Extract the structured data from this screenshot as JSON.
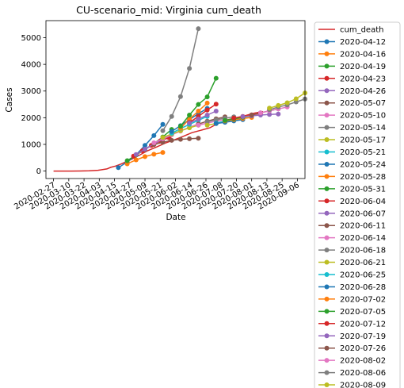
{
  "chart_data": {
    "type": "line",
    "title": "CU-scenario_mid: Virginia cum_death",
    "xlabel": "Date",
    "ylabel": "Cases",
    "xlim": [
      "2020-02-21",
      "2020-09-12"
    ],
    "ylim": [
      -280,
      5640
    ],
    "yticks": [
      0,
      1000,
      2000,
      3000,
      4000,
      5000
    ],
    "xticks": [
      "2020-02-27",
      "2020-03-10",
      "2020-03-22",
      "2020-04-03",
      "2020-04-15",
      "2020-04-27",
      "2020-05-09",
      "2020-05-21",
      "2020-06-02",
      "2020-06-14",
      "2020-06-26",
      "2020-07-08",
      "2020-07-20",
      "2020-08-01",
      "2020-08-13",
      "2020-08-25",
      "2020-09-06"
    ],
    "grid": false,
    "legend_position": "outside-right",
    "series": [
      {
        "name": "cum_death",
        "color": "#d62728",
        "marker": false,
        "points": [
          [
            "2020-02-27",
            0
          ],
          [
            "2020-03-05",
            0
          ],
          [
            "2020-03-12",
            0
          ],
          [
            "2020-03-19",
            2
          ],
          [
            "2020-03-26",
            8
          ],
          [
            "2020-04-02",
            30
          ],
          [
            "2020-04-09",
            80
          ],
          [
            "2020-04-12",
            140
          ],
          [
            "2020-04-16",
            190
          ],
          [
            "2020-04-20",
            260
          ],
          [
            "2020-04-27",
            410
          ],
          [
            "2020-05-04",
            580
          ],
          [
            "2020-05-11",
            760
          ],
          [
            "2020-05-18",
            900
          ],
          [
            "2020-05-25",
            1050
          ],
          [
            "2020-06-01",
            1170
          ],
          [
            "2020-06-08",
            1300
          ],
          [
            "2020-06-15",
            1440
          ],
          [
            "2020-06-22",
            1530
          ],
          [
            "2020-06-29",
            1620
          ],
          [
            "2020-07-06",
            1800
          ],
          [
            "2020-07-13",
            1920
          ],
          [
            "2020-07-20",
            2000
          ],
          [
            "2020-07-27",
            2080
          ],
          [
            "2020-08-03",
            2170
          ],
          [
            "2020-08-10",
            2230
          ]
        ]
      },
      {
        "name": "2020-04-12",
        "color": "#1f77b4",
        "marker": true,
        "points": [
          [
            "2020-04-18",
            130
          ],
          [
            "2020-04-25",
            340
          ],
          [
            "2020-05-02",
            610
          ],
          [
            "2020-05-09",
            960
          ],
          [
            "2020-05-16",
            1330
          ],
          [
            "2020-05-23",
            1750
          ]
        ]
      },
      {
        "name": "2020-04-16",
        "color": "#ff7f0e",
        "marker": true,
        "points": [
          [
            "2020-04-25",
            270
          ],
          [
            "2020-05-02",
            420
          ],
          [
            "2020-05-09",
            540
          ],
          [
            "2020-05-16",
            630
          ],
          [
            "2020-05-23",
            700
          ]
        ]
      },
      {
        "name": "2020-04-19",
        "color": "#2ca02c",
        "marker": true,
        "points": [
          [
            "2020-04-25",
            390
          ],
          [
            "2020-05-02",
            600
          ],
          [
            "2020-05-09",
            810
          ],
          [
            "2020-05-16",
            1030
          ],
          [
            "2020-05-23",
            1280
          ],
          [
            "2020-05-30",
            1560
          ]
        ]
      },
      {
        "name": "2020-04-23",
        "color": "#d62728",
        "marker": true,
        "points": [
          [
            "2020-04-30",
            560
          ],
          [
            "2020-05-07",
            760
          ],
          [
            "2020-05-14",
            960
          ],
          [
            "2020-05-21",
            1130
          ],
          [
            "2020-05-28",
            1250
          ]
        ]
      },
      {
        "name": "2020-04-26",
        "color": "#9467bd",
        "marker": true,
        "points": [
          [
            "2020-05-02",
            620
          ],
          [
            "2020-05-09",
            820
          ],
          [
            "2020-05-16",
            1020
          ],
          [
            "2020-05-23",
            1200
          ],
          [
            "2020-05-30",
            1360
          ]
        ]
      },
      {
        "name": "2020-05-07",
        "color": "#8c564b",
        "marker": true,
        "points": [
          [
            "2020-05-16",
            990
          ],
          [
            "2020-05-23",
            1080
          ],
          [
            "2020-05-30",
            1150
          ],
          [
            "2020-06-06",
            1190
          ],
          [
            "2020-06-13",
            1210
          ],
          [
            "2020-06-20",
            1230
          ]
        ]
      },
      {
        "name": "2020-05-10",
        "color": "#e377c2",
        "marker": true,
        "points": [
          [
            "2020-05-16",
            1060
          ],
          [
            "2020-05-23",
            1210
          ],
          [
            "2020-05-30",
            1360
          ],
          [
            "2020-06-06",
            1500
          ],
          [
            "2020-06-13",
            1640
          ],
          [
            "2020-06-20",
            1770
          ]
        ]
      },
      {
        "name": "2020-05-14",
        "color": "#7f7f7f",
        "marker": true,
        "points": [
          [
            "2020-05-23",
            1510
          ],
          [
            "2020-05-30",
            2050
          ],
          [
            "2020-06-06",
            2790
          ],
          [
            "2020-06-13",
            3850
          ],
          [
            "2020-06-20",
            5340
          ]
        ]
      },
      {
        "name": "2020-05-17",
        "color": "#bcbd22",
        "marker": true,
        "points": [
          [
            "2020-05-23",
            1260
          ],
          [
            "2020-05-30",
            1390
          ],
          [
            "2020-06-06",
            1510
          ],
          [
            "2020-06-13",
            1620
          ],
          [
            "2020-06-20",
            1720
          ]
        ]
      },
      {
        "name": "2020-05-21",
        "color": "#17becf",
        "marker": true,
        "points": [
          [
            "2020-05-30",
            1420
          ],
          [
            "2020-06-06",
            1590
          ],
          [
            "2020-06-13",
            1750
          ],
          [
            "2020-06-20",
            1900
          ],
          [
            "2020-06-27",
            2050
          ]
        ]
      },
      {
        "name": "2020-05-24",
        "color": "#1f77b4",
        "marker": true,
        "points": [
          [
            "2020-05-30",
            1480
          ],
          [
            "2020-06-06",
            1700
          ],
          [
            "2020-06-13",
            1930
          ],
          [
            "2020-06-20",
            2150
          ],
          [
            "2020-06-27",
            2350
          ]
        ]
      },
      {
        "name": "2020-05-28",
        "color": "#ff7f0e",
        "marker": true,
        "points": [
          [
            "2020-06-06",
            1600
          ],
          [
            "2020-06-13",
            1950
          ],
          [
            "2020-06-20",
            2250
          ],
          [
            "2020-06-27",
            2550
          ]
        ]
      },
      {
        "name": "2020-05-31",
        "color": "#2ca02c",
        "marker": true,
        "points": [
          [
            "2020-06-06",
            1680
          ],
          [
            "2020-06-13",
            2100
          ],
          [
            "2020-06-20",
            2500
          ],
          [
            "2020-06-27",
            2780
          ],
          [
            "2020-07-04",
            3480
          ]
        ]
      },
      {
        "name": "2020-06-04",
        "color": "#d62728",
        "marker": true,
        "points": [
          [
            "2020-06-13",
            1820
          ],
          [
            "2020-06-20",
            2050
          ],
          [
            "2020-06-27",
            2290
          ],
          [
            "2020-07-04",
            2510
          ]
        ]
      },
      {
        "name": "2020-06-07",
        "color": "#9467bd",
        "marker": true,
        "points": [
          [
            "2020-06-13",
            1800
          ],
          [
            "2020-06-20",
            1950
          ],
          [
            "2020-06-27",
            2100
          ],
          [
            "2020-07-04",
            2250
          ]
        ]
      },
      {
        "name": "2020-06-11",
        "color": "#8c564b",
        "marker": true,
        "points": [
          [
            "2020-06-20",
            1760
          ],
          [
            "2020-06-27",
            1870
          ],
          [
            "2020-07-04",
            1960
          ],
          [
            "2020-07-11",
            2030
          ]
        ]
      },
      {
        "name": "2020-06-14",
        "color": "#e377c2",
        "marker": true,
        "points": [
          [
            "2020-06-20",
            1720
          ],
          [
            "2020-06-27",
            1800
          ],
          [
            "2020-07-04",
            1870
          ],
          [
            "2020-07-11",
            1930
          ]
        ]
      },
      {
        "name": "2020-06-18",
        "color": "#7f7f7f",
        "marker": true,
        "points": [
          [
            "2020-06-27",
            1850
          ],
          [
            "2020-07-04",
            1920
          ],
          [
            "2020-07-11",
            1980
          ],
          [
            "2020-07-18",
            2030
          ]
        ]
      },
      {
        "name": "2020-06-21",
        "color": "#bcbd22",
        "marker": true,
        "points": [
          [
            "2020-06-27",
            1720
          ],
          [
            "2020-07-04",
            1780
          ],
          [
            "2020-07-11",
            1840
          ],
          [
            "2020-07-18",
            1900
          ]
        ]
      },
      {
        "name": "2020-06-25",
        "color": "#17becf",
        "marker": true,
        "points": [
          [
            "2020-07-04",
            1800
          ],
          [
            "2020-07-11",
            1870
          ],
          [
            "2020-07-18",
            1920
          ],
          [
            "2020-07-25",
            1970
          ]
        ]
      },
      {
        "name": "2020-06-28",
        "color": "#1f77b4",
        "marker": true,
        "points": [
          [
            "2020-07-04",
            1780
          ],
          [
            "2020-07-11",
            1830
          ],
          [
            "2020-07-18",
            1880
          ],
          [
            "2020-07-25",
            1930
          ]
        ]
      },
      {
        "name": "2020-07-02",
        "color": "#ff7f0e",
        "marker": true,
        "points": [
          [
            "2020-07-11",
            1880
          ],
          [
            "2020-07-18",
            1930
          ],
          [
            "2020-07-25",
            1970
          ],
          [
            "2020-08-01",
            2010
          ]
        ]
      },
      {
        "name": "2020-07-05",
        "color": "#2ca02c",
        "marker": true,
        "points": [
          [
            "2020-07-11",
            1900
          ],
          [
            "2020-07-18",
            1960
          ],
          [
            "2020-07-25",
            2020
          ],
          [
            "2020-08-01",
            2070
          ]
        ]
      },
      {
        "name": "2020-07-12",
        "color": "#d62728",
        "marker": true,
        "points": [
          [
            "2020-07-18",
            1990
          ],
          [
            "2020-07-25",
            2050
          ],
          [
            "2020-08-01",
            2110
          ],
          [
            "2020-08-08",
            2160
          ]
        ]
      },
      {
        "name": "2020-07-19",
        "color": "#9467bd",
        "marker": true,
        "points": [
          [
            "2020-07-25",
            2040
          ],
          [
            "2020-08-01",
            2070
          ],
          [
            "2020-08-08",
            2100
          ],
          [
            "2020-08-15",
            2120
          ],
          [
            "2020-08-22",
            2140
          ]
        ]
      },
      {
        "name": "2020-07-26",
        "color": "#8c564b",
        "marker": true,
        "points": [
          [
            "2020-08-01",
            2100
          ],
          [
            "2020-08-08",
            2180
          ],
          [
            "2020-08-15",
            2260
          ],
          [
            "2020-08-22",
            2330
          ]
        ]
      },
      {
        "name": "2020-08-02",
        "color": "#e377c2",
        "marker": true,
        "points": [
          [
            "2020-08-08",
            2180
          ],
          [
            "2020-08-15",
            2260
          ],
          [
            "2020-08-22",
            2330
          ],
          [
            "2020-08-29",
            2400
          ]
        ]
      },
      {
        "name": "2020-08-06",
        "color": "#7f7f7f",
        "marker": true,
        "points": [
          [
            "2020-08-15",
            2300
          ],
          [
            "2020-08-22",
            2400
          ],
          [
            "2020-08-29",
            2480
          ],
          [
            "2020-09-05",
            2590
          ],
          [
            "2020-09-12",
            2700
          ]
        ]
      },
      {
        "name": "2020-08-09",
        "color": "#bcbd22",
        "marker": true,
        "points": [
          [
            "2020-08-15",
            2360
          ],
          [
            "2020-08-22",
            2460
          ],
          [
            "2020-08-29",
            2560
          ],
          [
            "2020-09-05",
            2710
          ],
          [
            "2020-09-12",
            2930
          ]
        ]
      }
    ]
  }
}
